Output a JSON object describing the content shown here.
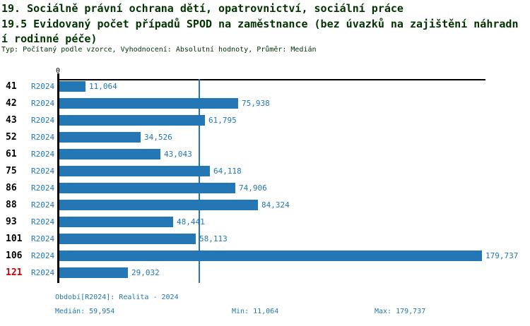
{
  "header": {
    "title": "19. Sociálně právní ochrana dětí, opatrovnictví, sociální práce",
    "subtitle_line1": "19.5 Evidovaný počet případů SPOD na zaměstnance (bez úvazků na zajištění náhradn",
    "subtitle_line2": "í rodinné péče)",
    "meta": "Typ: Počítaný podle vzorce, Vyhodnocení: Absolutní hodnoty, Průměr: Medián"
  },
  "chart": {
    "zero_label": "0"
  },
  "chart_data": {
    "type": "bar",
    "orientation": "horizontal",
    "title": "19.5 Evidovaný počet případů SPOD na zaměstnance (bez úvazků na zajištění náhradní rodinné péče)",
    "categories": [
      "41",
      "42",
      "43",
      "52",
      "61",
      "75",
      "86",
      "88",
      "93",
      "101",
      "106",
      "121"
    ],
    "series": [
      {
        "name": "R2024",
        "values": [
          11064,
          75938,
          61795,
          34526,
          43043,
          64118,
          74906,
          84324,
          48441,
          58113,
          179737,
          29032
        ]
      }
    ],
    "value_labels": [
      "11,064",
      "75,938",
      "61,795",
      "34,526",
      "43,043",
      "64,118",
      "74,906",
      "84,324",
      "48,441",
      "58,113",
      "179,737",
      "29,032"
    ],
    "x_axis_zero_label": "0",
    "xlim": [
      0,
      181500
    ],
    "median_value": 59954,
    "min_value": 11064,
    "max_value": 179737,
    "highlighted_categories": [
      "121"
    ],
    "grid": false,
    "legend_position": "none"
  },
  "footer": {
    "period": "Období[R2024]: Realita - 2024",
    "median": "Medián: 59,954",
    "min": "Min: 11,064",
    "max": "Max: 179,737"
  },
  "colors": {
    "accent_blue": "#2277b4",
    "highlight_red": "#cc0000",
    "title_green": "#003300",
    "axis_black": "#000000"
  }
}
